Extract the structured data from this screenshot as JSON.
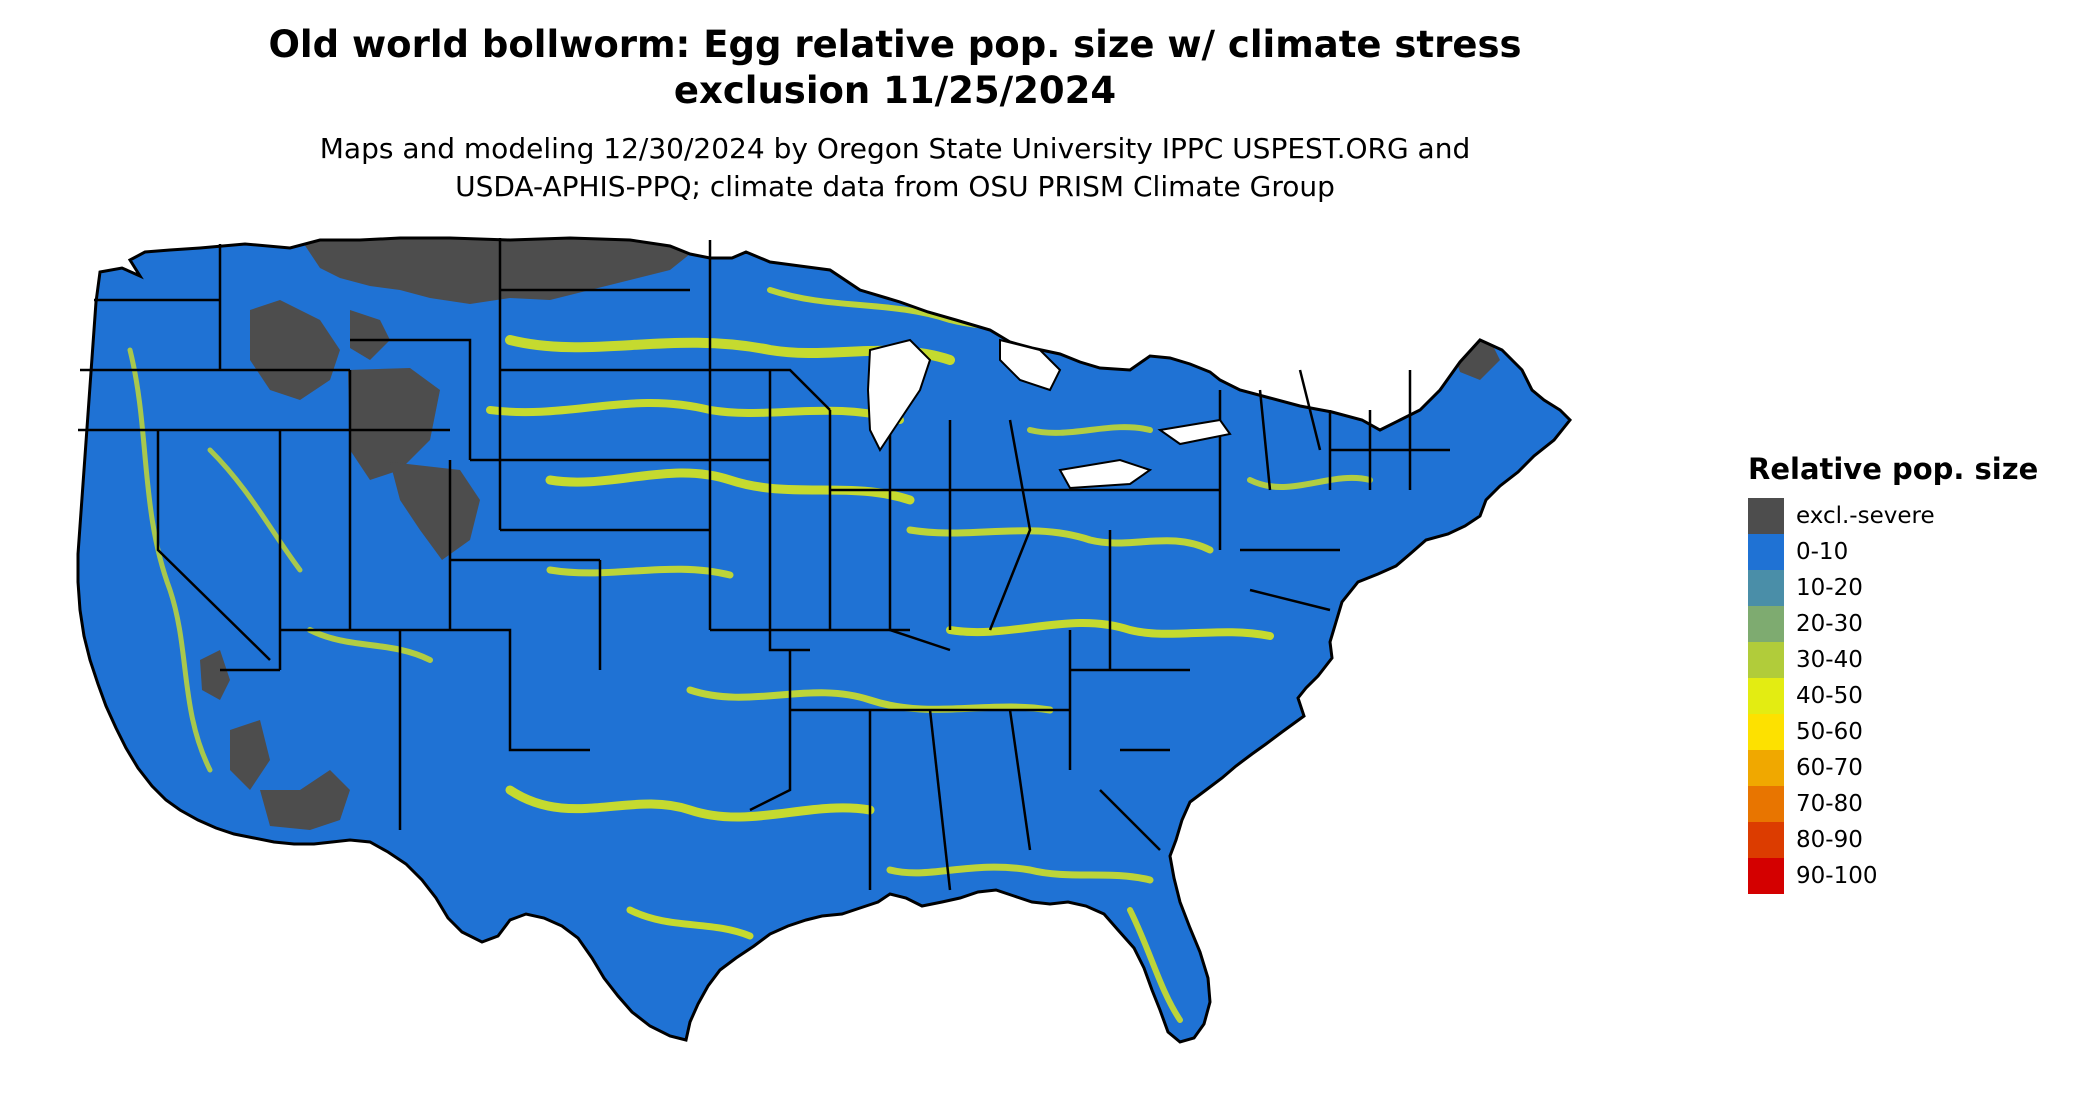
{
  "title": {
    "line1": "Old world bollworm: Egg relative pop. size w/ climate stress",
    "line2": "exclusion 11/25/2024"
  },
  "subtitle": {
    "line1": "Maps and modeling 12/30/2024 by Oregon State University IPPC USPEST.ORG and",
    "line2": "USDA-APHIS-PPQ; climate data from OSU PRISM Climate Group"
  },
  "legend": {
    "title": "Relative pop. size",
    "items": [
      {
        "label": "excl.-severe",
        "color": "#4d4d4d"
      },
      {
        "label": "0-10",
        "color": "#1f72d4"
      },
      {
        "label": "10-20",
        "color": "#4a8ea8"
      },
      {
        "label": "20-30",
        "color": "#7eab70"
      },
      {
        "label": "30-40",
        "color": "#b1cc3a"
      },
      {
        "label": "40-50",
        "color": "#e3ec12"
      },
      {
        "label": "50-60",
        "color": "#fde100"
      },
      {
        "label": "60-70",
        "color": "#f0a800"
      },
      {
        "label": "70-80",
        "color": "#e87500"
      },
      {
        "label": "80-90",
        "color": "#dc3c00"
      },
      {
        "label": "90-100",
        "color": "#d40000"
      }
    ]
  },
  "map": {
    "region": "contiguous-united-states",
    "boundary_color": "#000000",
    "base_color": "#1f72d4",
    "excluded_color": "#4d4d4d",
    "hotspot_color": "#e3ec12"
  }
}
